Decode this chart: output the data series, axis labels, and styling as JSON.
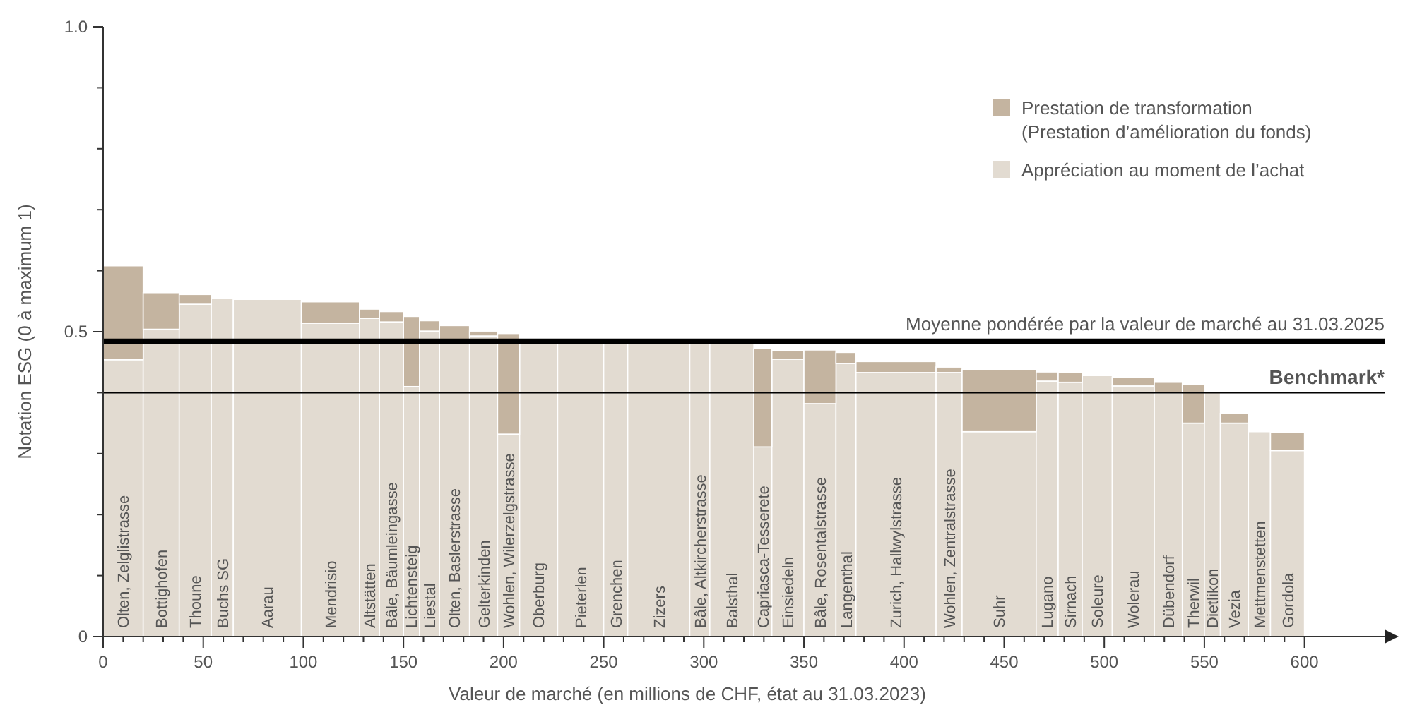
{
  "chart_data": {
    "type": "bar",
    "stacked": true,
    "xlabel": "Valeur de marché (en millions de CHF, état au 31.03.2023)",
    "ylabel": "Notation ESG (0 à maximum 1)",
    "annotations": [
      "Olten, Zelglistrasse",
      "Bottighofen",
      "Thoune",
      "Buchs SG",
      "Aarau",
      "Mendrisio",
      "Altstätten",
      "Bâle, Bäumleingasse",
      "Lichtensteig",
      "Liestal",
      "Olten, Baslerstrasse",
      "Gelterkinden",
      "Wohlen, Wilerzelgstrasse",
      "Oberburg",
      "Pieterlen",
      "Grenchen",
      "Zizers",
      "Bâle, Altkircherstrasse",
      "Balsthal",
      "Capriasca-Tesserete",
      "Einsiedeln",
      "Bâle, Rosentalstrasse",
      "Langenthal",
      "Zurich, Hallwylstrasse",
      "Wohlen, Zentralstrasse",
      "Suhr",
      "Lugano",
      "Sirnach",
      "Soleure",
      "Wolerau",
      "Dübendorf",
      "Therwil",
      "Dietlikon",
      "Vezia",
      "Mettmenstetten",
      "Gordola"
    ],
    "x": [
      10,
      29,
      46,
      59.5,
      82,
      113.5,
      133,
      144,
      154,
      163,
      175.5,
      190,
      202.5,
      217.5,
      238.5,
      256,
      277.5,
      298,
      314,
      329.5,
      342,
      358,
      371,
      396,
      422.5,
      447.5,
      471.5,
      483,
      496.5,
      514.5,
      532,
      544.5,
      554,
      565,
      577.5,
      591.5
    ],
    "series": [
      {
        "name": "Appréciation au moment de l’achat",
        "color": "#e2dbd1",
        "values": [
          0.454,
          0.504,
          0.545,
          0.555,
          0.553,
          0.514,
          0.522,
          0.516,
          0.41,
          0.501,
          0.485,
          0.493,
          0.332,
          0.483,
          0.483,
          0.483,
          0.483,
          0.483,
          0.483,
          0.311,
          0.455,
          0.382,
          0.448,
          0.433,
          0.433,
          0.336,
          0.419,
          0.417,
          0.428,
          0.411,
          0.4,
          0.35,
          0.401,
          0.35,
          0.336,
          0.305
        ]
      },
      {
        "name": "Prestation de transformation (Prestation d’amélioration du fonds)",
        "color": "#c4b4a0",
        "values": [
          0.154,
          0.06,
          0.016,
          0,
          0,
          0.035,
          0.015,
          0.017,
          0.115,
          0.017,
          0.025,
          0.008,
          0.165,
          0,
          0,
          0,
          0,
          0,
          0,
          0.161,
          0.014,
          0.088,
          0.018,
          0.018,
          0.009,
          0.102,
          0.015,
          0.016,
          0,
          0.014,
          0.017,
          0.064,
          0,
          0.016,
          0,
          0.03
        ]
      }
    ],
    "xlim": [
      0,
      640
    ],
    "ylim": [
      0,
      1
    ],
    "xticks": [
      0,
      {
        "value": 10,
        "label": null
      },
      {
        "value": 20,
        "label": null
      },
      {
        "value": 30,
        "label": null
      },
      {
        "value": 40,
        "label": null
      },
      50,
      {
        "value": 60,
        "label": null
      },
      {
        "value": 70,
        "label": null
      },
      {
        "value": 80,
        "label": null
      },
      {
        "value": 90,
        "label": null
      },
      100,
      {
        "value": 110,
        "label": null
      },
      {
        "value": 120,
        "label": null
      },
      {
        "value": 130,
        "label": null
      },
      {
        "value": 140,
        "label": null
      },
      150,
      {
        "value": 160,
        "label": null
      },
      {
        "value": 170,
        "label": null
      },
      {
        "value": 180,
        "label": null
      },
      {
        "value": 190,
        "label": null
      },
      200,
      {
        "value": 210,
        "label": null
      },
      {
        "value": 220,
        "label": null
      },
      {
        "value": 230,
        "label": null
      },
      {
        "value": 240,
        "label": null
      },
      250,
      {
        "value": 260,
        "label": null
      },
      {
        "value": 270,
        "label": null
      },
      {
        "value": 280,
        "label": null
      },
      {
        "value": 290,
        "label": null
      },
      300,
      {
        "value": 310,
        "label": null
      },
      {
        "value": 320,
        "label": null
      },
      {
        "value": 330,
        "label": null
      },
      {
        "value": 340,
        "label": null
      },
      350,
      {
        "value": 360,
        "label": null
      },
      {
        "value": 370,
        "label": null
      },
      {
        "value": 380,
        "label": null
      },
      {
        "value": 390,
        "label": null
      },
      400,
      {
        "value": 410,
        "label": null
      },
      {
        "value": 420,
        "label": null
      },
      {
        "value": 430,
        "label": null
      },
      {
        "value": 440,
        "label": null
      },
      450,
      {
        "value": 460,
        "label": null
      },
      {
        "value": 470,
        "label": null
      },
      {
        "value": 480,
        "label": null
      },
      {
        "value": 490,
        "label": null
      },
      500,
      {
        "value": 510,
        "label": null
      },
      {
        "value": 520,
        "label": null
      },
      {
        "value": 530,
        "label": null
      },
      {
        "value": 540,
        "label": null
      },
      550,
      {
        "value": 560,
        "label": null
      },
      {
        "value": 570,
        "label": null
      },
      {
        "value": 580,
        "label": null
      },
      {
        "value": 590,
        "label": null
      },
      600
    ],
    "yticks": [
      0,
      {
        "value": 0.1,
        "label": null
      },
      {
        "value": 0.2,
        "label": null
      },
      {
        "value": 0.3,
        "label": null
      },
      {
        "value": 0.4,
        "label": null
      },
      0.5,
      {
        "value": 0.6,
        "label": null
      },
      {
        "value": 0.7,
        "label": null
      },
      {
        "value": 0.8,
        "label": null
      },
      {
        "value": 0.9,
        "label": null
      },
      {
        "value": 1,
        "label": "1.0"
      }
    ],
    "ref_lines": [
      {
        "axis": "y",
        "value": 0.484,
        "label": "Moyenne pondérée par la valeur de marché au 31.03.2025",
        "color": "#000000"
      },
      {
        "axis": "y",
        "value": 0.4,
        "label": "Benchmark*",
        "color": "#000000"
      }
    ],
    "legend": "top right",
    "grid": false
  }
}
